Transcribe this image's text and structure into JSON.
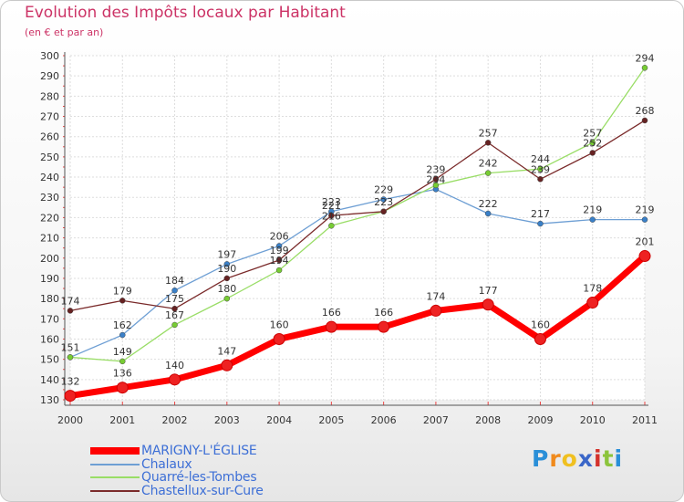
{
  "chart_data": {
    "type": "line",
    "title": "Evolution des Impôts locaux par Habitant",
    "subtitle": "(en € et par an)",
    "xlabel": "",
    "ylabel": "",
    "categories": [
      "2000",
      "2001",
      "2002",
      "2003",
      "2004",
      "2005",
      "2006",
      "2007",
      "2008",
      "2009",
      "2010",
      "2011"
    ],
    "ylim": [
      130,
      300
    ],
    "yticks": [
      "130",
      "140",
      "150",
      "160",
      "170",
      "180",
      "190",
      "200",
      "210",
      "220",
      "230",
      "240",
      "250",
      "260",
      "270",
      "280",
      "290",
      "300"
    ],
    "grid": true,
    "legend_position": "bottom-left",
    "series": [
      {
        "name": "MARIGNY-L'ÉGLISE",
        "color": "#ff0000",
        "marker": "#ee2222",
        "bold": true,
        "values": [
          132,
          136,
          140,
          147,
          160,
          166,
          166,
          174,
          177,
          160,
          178,
          201
        ]
      },
      {
        "name": "Chalaux",
        "color": "#6e9fd4",
        "marker": "#3a80c8",
        "bold": false,
        "values": [
          151,
          162,
          184,
          197,
          206,
          223,
          229,
          234,
          222,
          217,
          219,
          219
        ]
      },
      {
        "name": "Quarré-les-Tombes",
        "color": "#99dd66",
        "marker": "#77cc33",
        "bold": false,
        "values": [
          151,
          149,
          167,
          180,
          194,
          216,
          223,
          236,
          242,
          244,
          257,
          294
        ]
      },
      {
        "name": "Chastellux-sur-Cure",
        "color": "#7a2a2a",
        "marker": "#662222",
        "bold": false,
        "values": [
          174,
          179,
          175,
          190,
          199,
          221,
          223,
          239,
          257,
          239,
          252,
          268
        ]
      }
    ],
    "data_labels": [
      {
        "series": 0,
        "labels": [
          "132",
          "136",
          "140",
          "147",
          "160",
          "166",
          "166",
          "174",
          "177",
          "160",
          "178",
          "201"
        ]
      },
      {
        "series": 1,
        "labels": [
          "151",
          "162",
          "184",
          "197",
          "206",
          "223",
          "229",
          "234",
          "222",
          "217",
          "219",
          "219"
        ]
      },
      {
        "series": 2,
        "labels": [
          "",
          "149",
          "167",
          "180",
          "194",
          "216",
          "",
          "",
          "242",
          "244",
          "257",
          "294"
        ]
      },
      {
        "series": 3,
        "labels": [
          "174",
          "179",
          "175",
          "190",
          "199",
          "221",
          "223",
          "239",
          "257",
          "239",
          "252",
          "268"
        ]
      }
    ]
  },
  "branding": {
    "logo_letters": [
      "P",
      "r",
      "o",
      "x",
      "i",
      "t",
      "i"
    ],
    "logo_colors": [
      "#2a8fd8",
      "#f08a1c",
      "#f0c020",
      "#3a66c8",
      "#d4322c",
      "#8cc43c",
      "#2a8fd8"
    ]
  }
}
